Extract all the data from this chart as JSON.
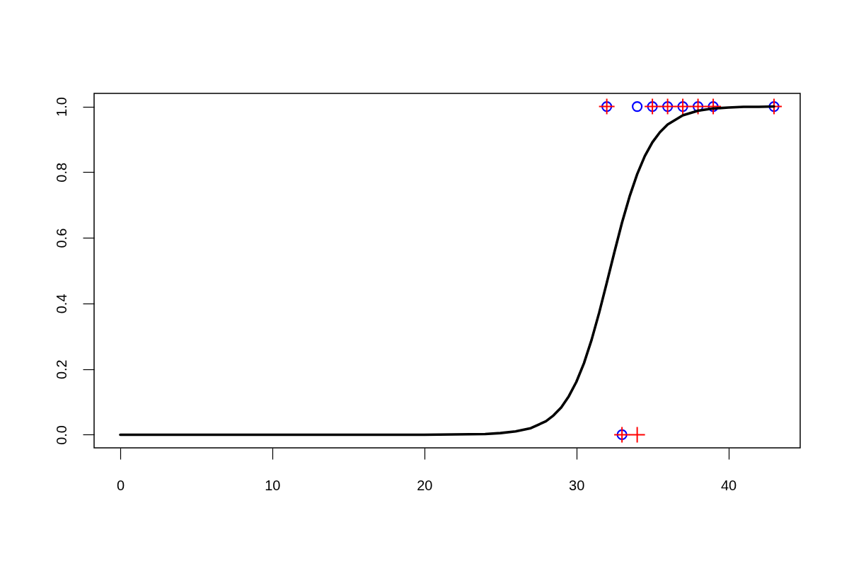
{
  "chart_data": {
    "type": "scatter",
    "xlim": [
      -1.72,
      44.72
    ],
    "ylim": [
      -0.04,
      1.04
    ],
    "xticks": [
      0,
      10,
      20,
      30,
      40
    ],
    "yticks": [
      {
        "value": 0,
        "label": "0.0"
      },
      {
        "value": 0.2,
        "label": "0.2"
      },
      {
        "value": 0.4,
        "label": "0.4"
      },
      {
        "value": 0.6,
        "label": "0.6"
      },
      {
        "value": 0.8,
        "label": "0.8"
      },
      {
        "value": 1,
        "label": "1.0"
      }
    ],
    "grid": false,
    "series": [
      {
        "color": "#0000ff",
        "marker": "circle",
        "x": [
          32,
          33,
          34,
          35,
          36,
          37,
          38,
          39,
          43
        ],
        "values": [
          1,
          0,
          1,
          1,
          1,
          1,
          1,
          1,
          1
        ]
      },
      {
        "color": "#ff0000",
        "marker": "cross",
        "x": [
          32,
          33,
          34,
          35,
          36,
          37,
          38,
          39,
          43
        ],
        "values": [
          1,
          0,
          0,
          1,
          1,
          1,
          1,
          1,
          1
        ]
      },
      {
        "type": "line",
        "color": "#000000",
        "line_style": "solid",
        "x": [
          0,
          5,
          10,
          15,
          20,
          22,
          24,
          25,
          26,
          27,
          28,
          28.5,
          29,
          29.5,
          30,
          30.5,
          31,
          31.5,
          32,
          32.5,
          33,
          33.5,
          34,
          34.5,
          35,
          35.5,
          36,
          37,
          38,
          39,
          40,
          41,
          42,
          43
        ],
        "values": [
          0,
          0,
          0,
          0,
          0,
          0.001,
          0.002,
          0.005,
          0.01,
          0.02,
          0.041,
          0.059,
          0.083,
          0.117,
          0.161,
          0.218,
          0.289,
          0.372,
          0.463,
          0.556,
          0.646,
          0.726,
          0.794,
          0.849,
          0.891,
          0.922,
          0.945,
          0.973,
          0.987,
          0.994,
          0.997,
          0.999,
          0.999,
          1
        ]
      }
    ]
  }
}
